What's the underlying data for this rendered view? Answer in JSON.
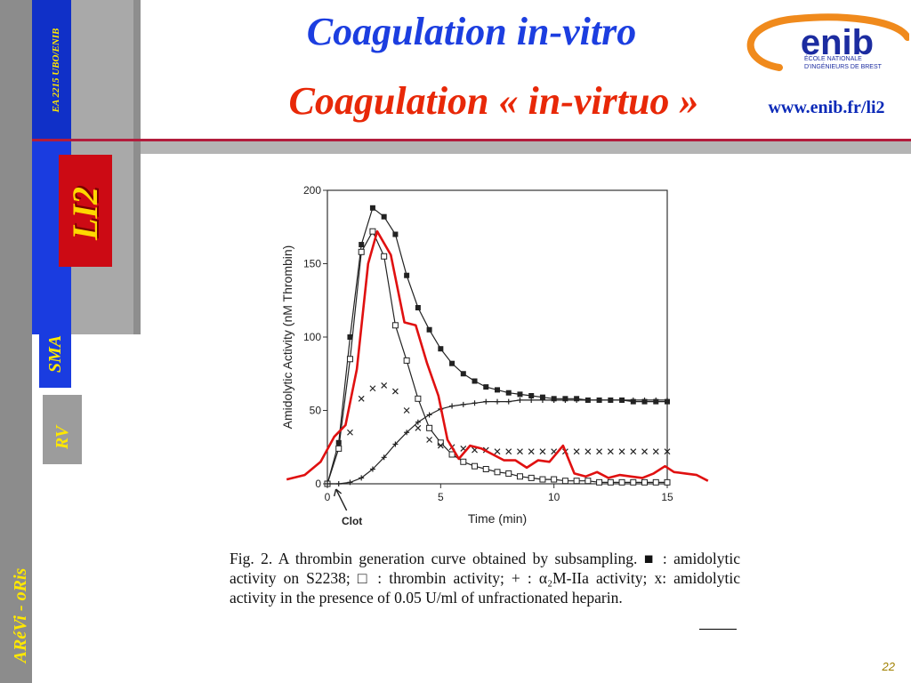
{
  "sidebar": {
    "lab": "EA 2215  UBO/ENIB",
    "team": "LI2",
    "group1": "SMA",
    "group2": "RV",
    "project": "ARéVi - oRis"
  },
  "header": {
    "title1": "Coagulation in-vitro",
    "title2": "Coagulation « in-virtuo »",
    "url": "www.enib.fr/li2"
  },
  "logo": {
    "word": "enib",
    "line1": "ÉCOLE NATIONALE",
    "line2": "D'INGÉNIEURS DE BREST",
    "colors": {
      "ring": "#f08a1c",
      "text": "#1c2ca0"
    }
  },
  "chart_data": {
    "type": "line",
    "xlabel": "Time (min)",
    "ylabel": "Amidolytic Activity (nM Thrombin)",
    "xlim": [
      0,
      15
    ],
    "ylim": [
      0,
      200
    ],
    "xticks": [
      0,
      5,
      10,
      15
    ],
    "yticks": [
      0,
      50,
      100,
      150,
      200
    ],
    "annotation": "Clot",
    "grid": false,
    "series": [
      {
        "marker": "filled-square",
        "color": "#222222",
        "x": [
          0,
          0.5,
          1,
          1.5,
          2,
          2.5,
          3,
          3.5,
          4,
          4.5,
          5,
          5.5,
          6,
          6.5,
          7,
          7.5,
          8,
          8.5,
          9,
          9.5,
          10,
          10.5,
          11,
          11.5,
          12,
          12.5,
          13,
          13.5,
          14,
          14.5,
          15
        ],
        "y": [
          0,
          28,
          100,
          163,
          188,
          182,
          170,
          142,
          120,
          105,
          92,
          82,
          75,
          70,
          66,
          64,
          62,
          61,
          60,
          59,
          58,
          58,
          58,
          57,
          57,
          57,
          57,
          56,
          56,
          56,
          56
        ]
      },
      {
        "marker": "open-square",
        "color": "#222222",
        "x": [
          0,
          0.5,
          1,
          1.5,
          2,
          2.5,
          3,
          3.5,
          4,
          4.5,
          5,
          5.5,
          6,
          6.5,
          7,
          7.5,
          8,
          8.5,
          9,
          9.5,
          10,
          10.5,
          11,
          11.5,
          12,
          12.5,
          13,
          13.5,
          14,
          14.5,
          15
        ],
        "y": [
          0,
          24,
          85,
          158,
          172,
          155,
          108,
          84,
          58,
          38,
          28,
          20,
          15,
          12,
          10,
          8,
          7,
          5,
          4,
          3,
          3,
          2,
          2,
          2,
          1,
          1,
          1,
          1,
          1,
          1,
          1
        ]
      },
      {
        "marker": "plus",
        "color": "#222222",
        "x": [
          0,
          0.5,
          1,
          1.5,
          2,
          2.5,
          3,
          3.5,
          4,
          4.5,
          5,
          5.5,
          6,
          6.5,
          7,
          7.5,
          8,
          8.5,
          9,
          9.5,
          10,
          10.5,
          11,
          11.5,
          12,
          12.5,
          13,
          13.5,
          14,
          14.5,
          15
        ],
        "y": [
          0,
          0,
          1,
          4,
          10,
          18,
          27,
          35,
          42,
          47,
          51,
          53,
          54,
          55,
          56,
          56,
          56,
          57,
          57,
          57,
          57,
          57,
          57,
          57,
          57,
          57,
          57,
          57,
          57,
          57,
          57
        ]
      },
      {
        "marker": "x",
        "color": "#222222",
        "x": [
          1,
          1.5,
          2,
          2.5,
          3,
          3.5,
          4,
          4.5,
          5,
          5.5,
          6,
          6.5,
          7,
          7.5,
          8,
          8.5,
          9,
          9.5,
          10,
          10.5,
          11,
          11.5,
          12,
          12.5,
          13,
          13.5,
          14,
          14.5,
          15
        ],
        "y": [
          35,
          58,
          65,
          67,
          63,
          50,
          38,
          30,
          26,
          25,
          24,
          23,
          23,
          22,
          22,
          22,
          22,
          22,
          22,
          22,
          22,
          22,
          22,
          22,
          22,
          22,
          22,
          22,
          22
        ]
      },
      {
        "marker": "none",
        "color": "#e01010",
        "x": [
          -1.8,
          -1,
          -0.3,
          0.3,
          0.8,
          1.3,
          1.8,
          2.2,
          2.8,
          3.4,
          3.9,
          4.4,
          4.9,
          5.3,
          5.8,
          6.3,
          6.8,
          7.3,
          7.8,
          8.3,
          8.8,
          9.3,
          9.8,
          10.4,
          10.9,
          11.4,
          11.9,
          12.4,
          12.9,
          13.4,
          13.9,
          14.4,
          14.9,
          15.3,
          15.8,
          16.3,
          16.8
        ],
        "y": [
          3,
          6,
          15,
          32,
          40,
          78,
          150,
          172,
          156,
          110,
          108,
          82,
          60,
          30,
          17,
          26,
          24,
          20,
          16,
          16,
          11,
          16,
          15,
          26,
          7,
          5,
          8,
          4,
          6,
          5,
          4,
          7,
          12,
          8,
          7,
          6,
          2
        ]
      }
    ]
  },
  "caption": {
    "text": "Fig. 2. A thrombin  generation curve obtained by subsampling. ■ : amidolytic activity on S2238; □ : thrombin activity;  + : α₂M-IIa activity; x: amidolytic activity in the presence of 0.05 U/ml of unfractionated heparin."
  },
  "page_number": "22"
}
